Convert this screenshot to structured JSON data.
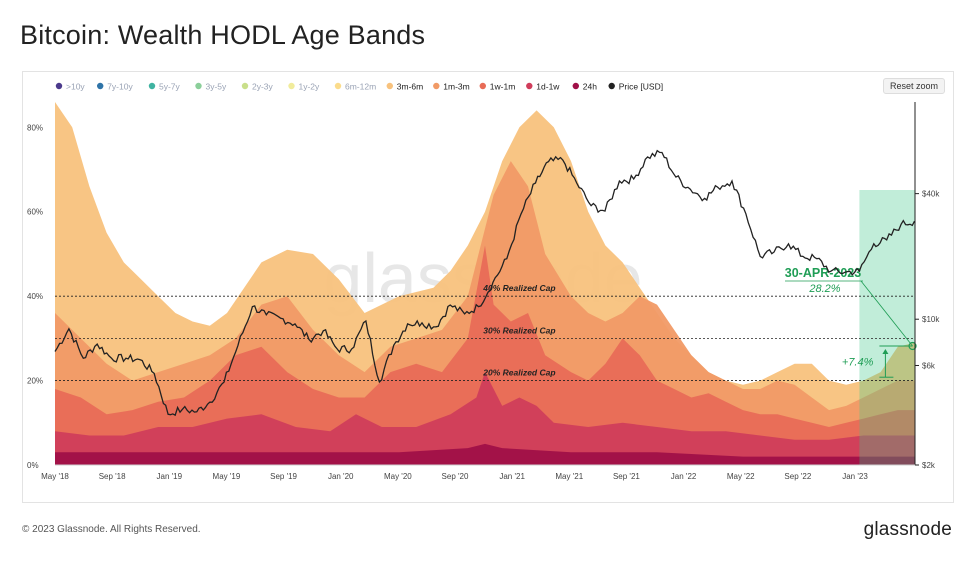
{
  "title": "Bitcoin: Wealth HODL Age Bands",
  "reset_zoom": "Reset zoom",
  "watermark": "glassnode",
  "footer": "© 2023 Glassnode. All Rights Reserved.",
  "brand": "glassnode",
  "chart_data": {
    "type": "area",
    "title": "Bitcoin: Wealth HODL Age Bands",
    "legend_position": "top-left",
    "legend": [
      {
        "name": ">10y",
        "color": "#4b3a8c",
        "active": false
      },
      {
        "name": "7y-10y",
        "color": "#2f74a8",
        "active": false
      },
      {
        "name": "5y-7y",
        "color": "#3fb3a1",
        "active": false
      },
      {
        "name": "3y-5y",
        "color": "#8bcf9a",
        "active": false
      },
      {
        "name": "2y-3y",
        "color": "#c9df8a",
        "active": false
      },
      {
        "name": "1y-2y",
        "color": "#f1ec9c",
        "active": false
      },
      {
        "name": "6m-12m",
        "color": "#fbdc8c",
        "active": false
      },
      {
        "name": "3m-6m",
        "color": "#f8c27d",
        "active": true
      },
      {
        "name": "1m-3m",
        "color": "#f19a66",
        "active": true
      },
      {
        "name": "1w-1m",
        "color": "#e86c57",
        "active": true
      },
      {
        "name": "1d-1w",
        "color": "#d03d5b",
        "active": true
      },
      {
        "name": "24h",
        "color": "#a01048",
        "active": true
      },
      {
        "name": "Price [USD]",
        "color": "#222222",
        "active": true
      }
    ],
    "x_ticks": [
      "May '18",
      "Sep '18",
      "Jan '19",
      "May '19",
      "Sep '19",
      "Jan '20",
      "May '20",
      "Sep '20",
      "Jan '21",
      "May '21",
      "Sep '21",
      "Jan '22",
      "May '22",
      "Sep '22",
      "Jan '23"
    ],
    "y_left": {
      "ticks": [
        "0%",
        "20%",
        "40%",
        "60%",
        "80%"
      ],
      "values": [
        0,
        20,
        40,
        60,
        80
      ],
      "range": [
        0,
        86
      ]
    },
    "y_right": {
      "ticks": [
        "$2k",
        "$6k",
        "$10k",
        "$40k"
      ],
      "values": [
        2000,
        6000,
        10000,
        40000
      ],
      "scale": "log",
      "range": [
        2000,
        110000
      ]
    },
    "date_range": [
      "2018-04-01",
      "2023-05-01"
    ],
    "series": [
      {
        "name": "3m-6m",
        "color": "#f8c27d",
        "points": [
          [
            0,
            86
          ],
          [
            2,
            80
          ],
          [
            4,
            66
          ],
          [
            6,
            55
          ],
          [
            8,
            48
          ],
          [
            10,
            44
          ],
          [
            12,
            40
          ],
          [
            14,
            36
          ],
          [
            16,
            34
          ],
          [
            18,
            33
          ],
          [
            20,
            36
          ],
          [
            24,
            48
          ],
          [
            27,
            51
          ],
          [
            30,
            50
          ],
          [
            33,
            44
          ],
          [
            36,
            36
          ],
          [
            38,
            38
          ],
          [
            40,
            40
          ],
          [
            44,
            42
          ],
          [
            46,
            46
          ],
          [
            48,
            52
          ],
          [
            50,
            60
          ],
          [
            52,
            72
          ],
          [
            54,
            80
          ],
          [
            56,
            84
          ],
          [
            58,
            80
          ],
          [
            60,
            72
          ],
          [
            62,
            60
          ],
          [
            64,
            52
          ],
          [
            66,
            48
          ],
          [
            68,
            42
          ],
          [
            70,
            36
          ],
          [
            72,
            30
          ],
          [
            74,
            26
          ],
          [
            76,
            22
          ],
          [
            78,
            20
          ],
          [
            80,
            19
          ],
          [
            82,
            20
          ],
          [
            84,
            22
          ],
          [
            86,
            24
          ],
          [
            88,
            24
          ],
          [
            90,
            20
          ],
          [
            92,
            19
          ],
          [
            94,
            20
          ],
          [
            96,
            22
          ],
          [
            98,
            28
          ],
          [
            100,
            29
          ]
        ]
      },
      {
        "name": "1m-3m",
        "color": "#f19a66",
        "points": [
          [
            0,
            36
          ],
          [
            3,
            30
          ],
          [
            6,
            24
          ],
          [
            9,
            20
          ],
          [
            12,
            22
          ],
          [
            15,
            24
          ],
          [
            18,
            26
          ],
          [
            21,
            30
          ],
          [
            24,
            38
          ],
          [
            27,
            40
          ],
          [
            30,
            32
          ],
          [
            33,
            26
          ],
          [
            36,
            22
          ],
          [
            39,
            28
          ],
          [
            42,
            30
          ],
          [
            45,
            32
          ],
          [
            48,
            40
          ],
          [
            51,
            64
          ],
          [
            53,
            72
          ],
          [
            55,
            66
          ],
          [
            57,
            50
          ],
          [
            60,
            40
          ],
          [
            62,
            36
          ],
          [
            64,
            34
          ],
          [
            66,
            36
          ],
          [
            68,
            40
          ],
          [
            70,
            38
          ],
          [
            72,
            32
          ],
          [
            74,
            26
          ],
          [
            76,
            22
          ],
          [
            78,
            20
          ],
          [
            80,
            18
          ],
          [
            82,
            18
          ],
          [
            84,
            20
          ],
          [
            86,
            19
          ],
          [
            88,
            16
          ],
          [
            90,
            13
          ],
          [
            92,
            14
          ],
          [
            94,
            16
          ],
          [
            96,
            18
          ],
          [
            98,
            20
          ],
          [
            100,
            20
          ]
        ]
      },
      {
        "name": "1w-1m",
        "color": "#e86c57",
        "points": [
          [
            0,
            18
          ],
          [
            3,
            16
          ],
          [
            6,
            12
          ],
          [
            9,
            13
          ],
          [
            12,
            15
          ],
          [
            15,
            16
          ],
          [
            18,
            20
          ],
          [
            21,
            26
          ],
          [
            24,
            28
          ],
          [
            27,
            22
          ],
          [
            30,
            18
          ],
          [
            33,
            16
          ],
          [
            36,
            16
          ],
          [
            39,
            22
          ],
          [
            42,
            24
          ],
          [
            45,
            22
          ],
          [
            48,
            30
          ],
          [
            50,
            52
          ],
          [
            51,
            38
          ],
          [
            53,
            34
          ],
          [
            55,
            36
          ],
          [
            57,
            26
          ],
          [
            60,
            22
          ],
          [
            62,
            20
          ],
          [
            64,
            24
          ],
          [
            66,
            30
          ],
          [
            68,
            26
          ],
          [
            70,
            20
          ],
          [
            72,
            18
          ],
          [
            74,
            16
          ],
          [
            76,
            17
          ],
          [
            78,
            15
          ],
          [
            80,
            13
          ],
          [
            82,
            12
          ],
          [
            84,
            12
          ],
          [
            86,
            11
          ],
          [
            88,
            10
          ],
          [
            90,
            9
          ],
          [
            92,
            10
          ],
          [
            94,
            11
          ],
          [
            96,
            12
          ],
          [
            98,
            13
          ],
          [
            100,
            13
          ]
        ]
      },
      {
        "name": "1d-1w",
        "color": "#d03d5b",
        "points": [
          [
            0,
            8
          ],
          [
            4,
            7
          ],
          [
            8,
            7
          ],
          [
            12,
            9
          ],
          [
            16,
            9
          ],
          [
            20,
            11
          ],
          [
            24,
            12
          ],
          [
            28,
            9
          ],
          [
            32,
            8
          ],
          [
            35,
            12
          ],
          [
            38,
            9
          ],
          [
            42,
            9
          ],
          [
            46,
            12
          ],
          [
            49,
            16
          ],
          [
            50,
            22
          ],
          [
            52,
            14
          ],
          [
            54,
            16
          ],
          [
            56,
            14
          ],
          [
            58,
            10
          ],
          [
            62,
            9
          ],
          [
            66,
            10
          ],
          [
            70,
            9
          ],
          [
            74,
            8
          ],
          [
            78,
            8
          ],
          [
            82,
            7
          ],
          [
            86,
            6
          ],
          [
            90,
            6
          ],
          [
            94,
            7
          ],
          [
            98,
            7
          ],
          [
            100,
            7
          ]
        ]
      },
      {
        "name": "24h",
        "color": "#a01048",
        "points": [
          [
            0,
            3
          ],
          [
            10,
            3
          ],
          [
            20,
            3
          ],
          [
            30,
            3
          ],
          [
            40,
            3
          ],
          [
            48,
            4
          ],
          [
            50,
            5
          ],
          [
            52,
            4
          ],
          [
            60,
            3
          ],
          [
            70,
            3
          ],
          [
            80,
            2
          ],
          [
            90,
            2
          ],
          [
            100,
            2
          ]
        ]
      }
    ],
    "price": {
      "name": "Price [USD]",
      "color": "#222222",
      "points": [
        [
          "2018-04-01",
          7000
        ],
        [
          "2018-05-01",
          9000
        ],
        [
          "2018-06-01",
          6500
        ],
        [
          "2018-07-01",
          7600
        ],
        [
          "2018-08-01",
          6500
        ],
        [
          "2018-09-01",
          6500
        ],
        [
          "2018-10-01",
          6400
        ],
        [
          "2018-11-01",
          5500
        ],
        [
          "2018-12-01",
          3500
        ],
        [
          "2019-01-01",
          3700
        ],
        [
          "2019-02-01",
          3600
        ],
        [
          "2019-03-01",
          4000
        ],
        [
          "2019-04-01",
          5000
        ],
        [
          "2019-05-01",
          7500
        ],
        [
          "2019-06-01",
          11500
        ],
        [
          "2019-07-01",
          10500
        ],
        [
          "2019-08-01",
          10100
        ],
        [
          "2019-09-01",
          9500
        ],
        [
          "2019-10-01",
          8000
        ],
        [
          "2019-11-01",
          8800
        ],
        [
          "2019-12-01",
          7200
        ],
        [
          "2020-01-01",
          7200
        ],
        [
          "2020-02-01",
          9800
        ],
        [
          "2020-03-01",
          5000
        ],
        [
          "2020-04-01",
          7500
        ],
        [
          "2020-05-01",
          9500
        ],
        [
          "2020-06-01",
          9600
        ],
        [
          "2020-07-01",
          9200
        ],
        [
          "2020-08-01",
          11700
        ],
        [
          "2020-09-01",
          10600
        ],
        [
          "2020-10-01",
          11500
        ],
        [
          "2020-11-01",
          15000
        ],
        [
          "2020-12-01",
          19500
        ],
        [
          "2021-01-01",
          32000
        ],
        [
          "2021-02-01",
          45000
        ],
        [
          "2021-03-01",
          57000
        ],
        [
          "2021-04-01",
          58000
        ],
        [
          "2021-05-01",
          45000
        ],
        [
          "2021-06-01",
          35000
        ],
        [
          "2021-07-01",
          33000
        ],
        [
          "2021-08-01",
          46000
        ],
        [
          "2021-09-01",
          47000
        ],
        [
          "2021-10-01",
          60000
        ],
        [
          "2021-11-01",
          63000
        ],
        [
          "2021-12-01",
          48000
        ],
        [
          "2022-01-01",
          42000
        ],
        [
          "2022-02-01",
          38000
        ],
        [
          "2022-03-01",
          43000
        ],
        [
          "2022-04-01",
          46000
        ],
        [
          "2022-05-01",
          32000
        ],
        [
          "2022-06-01",
          20000
        ],
        [
          "2022-07-01",
          21000
        ],
        [
          "2022-08-01",
          23000
        ],
        [
          "2022-09-01",
          20000
        ],
        [
          "2022-10-01",
          19500
        ],
        [
          "2022-11-01",
          17000
        ],
        [
          "2022-12-01",
          16800
        ],
        [
          "2023-01-01",
          17000
        ],
        [
          "2023-02-01",
          23000
        ],
        [
          "2023-03-01",
          24000
        ],
        [
          "2023-04-01",
          28500
        ],
        [
          "2023-04-30",
          29500
        ]
      ]
    },
    "reference_lines": [
      {
        "label": "40% Realized Cap",
        "value": 40
      },
      {
        "label": "30% Realized Cap",
        "value": 30
      },
      {
        "label": "20% Realized Cap",
        "value": 20
      }
    ],
    "annotations": {
      "date": "30-APR-2023",
      "pct": "28.2%",
      "delta": "+7.4%",
      "color": "#1f9d55",
      "highlight_start": "2023-01-01",
      "highlight_end": "2023-04-30",
      "start_value": 20.8,
      "end_value": 28.2
    }
  }
}
